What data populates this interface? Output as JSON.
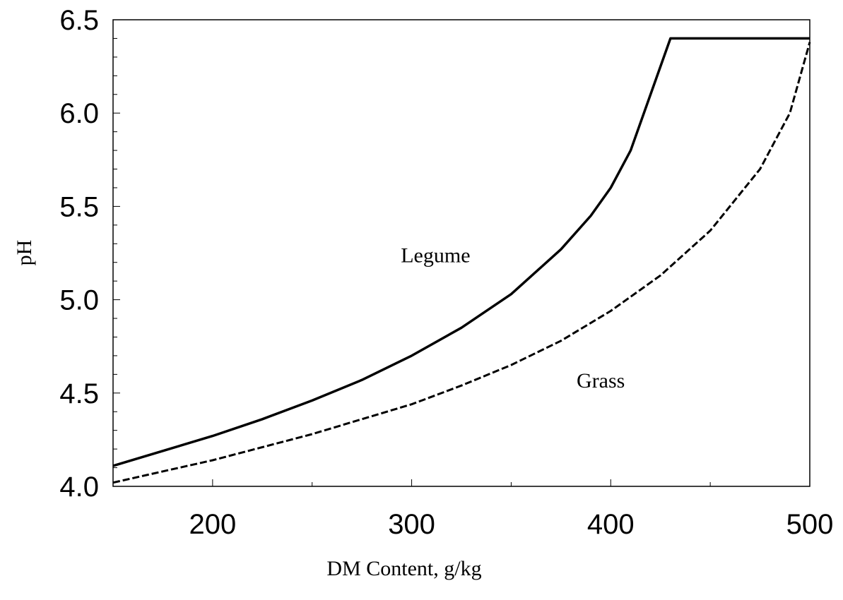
{
  "chart_data": {
    "type": "line",
    "title": "",
    "xlabel": "DM  Content, g/kg",
    "ylabel": "pH",
    "xlim": [
      150,
      500
    ],
    "ylim": [
      4.0,
      6.5
    ],
    "x_ticks": [
      200,
      300,
      400,
      500
    ],
    "x_tick_labels": [
      "200",
      "300",
      "400",
      "500"
    ],
    "y_ticks": [
      4.0,
      4.5,
      5.0,
      5.5,
      6.0,
      6.5
    ],
    "y_tick_labels": [
      "4.0",
      "4.5",
      "5.0",
      "5.5",
      "6.0",
      "6.5"
    ],
    "grid": false,
    "legend": "none",
    "series": [
      {
        "style": "solid",
        "color": "#000000",
        "x": [
          150,
          175,
          200,
          225,
          250,
          275,
          300,
          325,
          350,
          375,
          390,
          400,
          410,
          430,
          500
        ],
        "y": [
          4.11,
          4.19,
          4.27,
          4.36,
          4.46,
          4.57,
          4.7,
          4.85,
          5.03,
          5.27,
          5.45,
          5.6,
          5.8,
          6.4,
          6.4
        ]
      },
      {
        "style": "dashed",
        "color": "#000000",
        "x": [
          150,
          175,
          200,
          225,
          250,
          275,
          300,
          325,
          350,
          375,
          400,
          425,
          450,
          475,
          490,
          500
        ],
        "y": [
          4.02,
          4.08,
          4.14,
          4.21,
          4.28,
          4.36,
          4.44,
          4.54,
          4.65,
          4.78,
          4.94,
          5.13,
          5.37,
          5.7,
          6.0,
          6.38
        ]
      }
    ],
    "annotations": [
      {
        "text": "Legume",
        "x": 312,
        "y": 5.2
      },
      {
        "text": "Grass",
        "x": 395,
        "y": 4.53
      }
    ]
  }
}
